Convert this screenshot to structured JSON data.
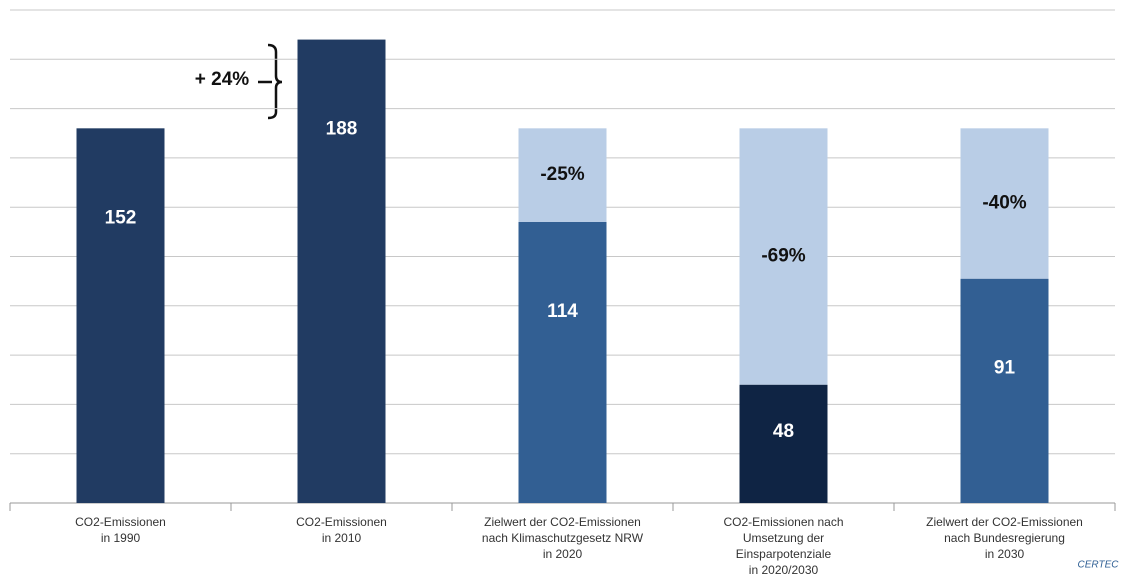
{
  "chart_data": {
    "type": "stacked_bar",
    "categories": [
      [
        "CO2-Emissionen",
        "in 1990"
      ],
      [
        "CO2-Emissionen",
        "in 2010"
      ],
      [
        "Zielwert der CO2-Emissionen",
        "nach Klimaschutzgesetz NRW",
        "in 2020"
      ],
      [
        "CO2-Emissionen nach",
        "Umsetzung der",
        "Einsparpotenziale",
        "in 2020/2030"
      ],
      [
        "Zielwert der CO2-Emissionen",
        "nach Bundesregierung",
        "in 2030"
      ]
    ],
    "series": [
      {
        "colors": [
          "#213b62",
          "#213b62",
          "#325f93",
          "#0f2444",
          "#325f93"
        ],
        "values": [
          152,
          188,
          114,
          48,
          91
        ]
      },
      {
        "colors": [
          "#b9cde6",
          "#b9cde6",
          "#b9cde6",
          "#b9cde6",
          "#b9cde6"
        ],
        "values": [
          null,
          null,
          38,
          104,
          61
        ],
        "segment_notes": [
          null,
          null,
          "-25%",
          "-69%",
          "-40%"
        ]
      }
    ],
    "increase_note": "+ 24%",
    "ylim": [
      0,
      200
    ],
    "yticks": [
      0,
      20,
      40,
      60,
      80,
      100,
      120,
      140,
      160,
      180,
      200
    ],
    "grid": true
  },
  "logo": "CERTEC"
}
